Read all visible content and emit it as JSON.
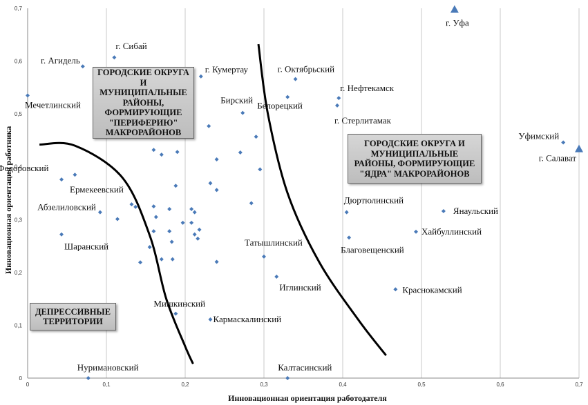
{
  "chart_data": {
    "type": "scatter",
    "xlabel": "Инновационная ориентация работодателя",
    "ylabel": "Инновационная ориентация работника",
    "xlim": [
      0,
      0.7
    ],
    "ylim": [
      0,
      0.7
    ],
    "xticks": [
      0,
      0.1,
      0.2,
      0.3,
      0.4,
      0.5,
      0.6,
      0.7
    ],
    "yticks": [
      0,
      0.1,
      0.2,
      0.3,
      0.4,
      0.5,
      0.6,
      0.7
    ],
    "xtick_labels": [
      "0",
      "0,1",
      "0,2",
      "0,3",
      "0,4",
      "0,5",
      "0,6",
      "0,7"
    ],
    "ytick_labels": [
      "0",
      "0,1",
      "0,2",
      "0,3",
      "0,4",
      "0,5",
      "0,6",
      "0,7"
    ],
    "grid": "vertical",
    "points": [
      {
        "x": 0.0,
        "y": 0.535,
        "label": "Мечетлинский",
        "marker": "diamond"
      },
      {
        "x": 0.07,
        "y": 0.59,
        "label": "г. Агидель",
        "marker": "diamond"
      },
      {
        "x": 0.11,
        "y": 0.607,
        "label": "г. Сибай",
        "marker": "diamond"
      },
      {
        "x": 0.22,
        "y": 0.571,
        "label": "г. Кумертау",
        "marker": "diamond"
      },
      {
        "x": 0.273,
        "y": 0.502,
        "label": "Бирский",
        "marker": "diamond"
      },
      {
        "x": 0.34,
        "y": 0.566,
        "label": "г. Октябрьский",
        "marker": "diamond"
      },
      {
        "x": 0.33,
        "y": 0.532,
        "label": "Белорецкий",
        "marker": "diamond"
      },
      {
        "x": 0.395,
        "y": 0.53,
        "label": "г. Нефтекамск",
        "marker": "diamond"
      },
      {
        "x": 0.393,
        "y": 0.516,
        "label": "г. Стерлитамак",
        "marker": "diamond"
      },
      {
        "x": 0.542,
        "y": 0.698,
        "label": "г. Уфа",
        "marker": "triangle"
      },
      {
        "x": 0.68,
        "y": 0.446,
        "label": "Уфимский",
        "marker": "diamond"
      },
      {
        "x": 0.7,
        "y": 0.434,
        "label": "г. Салават",
        "marker": "triangle"
      },
      {
        "x": 0.06,
        "y": 0.385,
        "label": "Федоровский",
        "marker": "diamond"
      },
      {
        "x": 0.043,
        "y": 0.376,
        "label": "Ермекеевский",
        "marker": "diamond"
      },
      {
        "x": 0.092,
        "y": 0.314,
        "label": "Абзелиловский",
        "marker": "diamond"
      },
      {
        "x": 0.043,
        "y": 0.272,
        "label": "Шаранский",
        "marker": "diamond"
      },
      {
        "x": 0.405,
        "y": 0.314,
        "label": "Дюртюлинский",
        "marker": "diamond"
      },
      {
        "x": 0.528,
        "y": 0.316,
        "label": "Янаульский",
        "marker": "diamond"
      },
      {
        "x": 0.493,
        "y": 0.277,
        "label": "Хайбуллинский",
        "marker": "diamond"
      },
      {
        "x": 0.408,
        "y": 0.266,
        "label": "Благовещенский",
        "marker": "diamond"
      },
      {
        "x": 0.3,
        "y": 0.23,
        "label": "Татышлинский",
        "marker": "diamond"
      },
      {
        "x": 0.316,
        "y": 0.192,
        "label": "Иглинский",
        "marker": "diamond"
      },
      {
        "x": 0.467,
        "y": 0.168,
        "label": "Краснокамский",
        "marker": "diamond"
      },
      {
        "x": 0.188,
        "y": 0.122,
        "label": "Мишкинский",
        "marker": "diamond"
      },
      {
        "x": 0.232,
        "y": 0.111,
        "label": "Кармаскалинский",
        "marker": "diamond"
      },
      {
        "x": 0.077,
        "y": 0.0,
        "label": "Нуримановский",
        "marker": "diamond"
      },
      {
        "x": 0.33,
        "y": 0.0,
        "label": "Калтасинский",
        "marker": "diamond"
      },
      {
        "x": 0.23,
        "y": 0.477,
        "label": "",
        "marker": "diamond"
      },
      {
        "x": 0.16,
        "y": 0.432,
        "label": "",
        "marker": "diamond"
      },
      {
        "x": 0.17,
        "y": 0.423,
        "label": "",
        "marker": "diamond"
      },
      {
        "x": 0.19,
        "y": 0.428,
        "label": "",
        "marker": "diamond"
      },
      {
        "x": 0.24,
        "y": 0.414,
        "label": "",
        "marker": "diamond"
      },
      {
        "x": 0.27,
        "y": 0.427,
        "label": "",
        "marker": "diamond"
      },
      {
        "x": 0.29,
        "y": 0.457,
        "label": "",
        "marker": "diamond"
      },
      {
        "x": 0.295,
        "y": 0.395,
        "label": "",
        "marker": "diamond"
      },
      {
        "x": 0.188,
        "y": 0.364,
        "label": "",
        "marker": "diamond"
      },
      {
        "x": 0.232,
        "y": 0.369,
        "label": "",
        "marker": "diamond"
      },
      {
        "x": 0.24,
        "y": 0.356,
        "label": "",
        "marker": "diamond"
      },
      {
        "x": 0.284,
        "y": 0.331,
        "label": "",
        "marker": "diamond"
      },
      {
        "x": 0.132,
        "y": 0.329,
        "label": "",
        "marker": "diamond"
      },
      {
        "x": 0.137,
        "y": 0.324,
        "label": "",
        "marker": "diamond"
      },
      {
        "x": 0.16,
        "y": 0.325,
        "label": "",
        "marker": "diamond"
      },
      {
        "x": 0.18,
        "y": 0.32,
        "label": "",
        "marker": "diamond"
      },
      {
        "x": 0.208,
        "y": 0.32,
        "label": "",
        "marker": "diamond"
      },
      {
        "x": 0.212,
        "y": 0.314,
        "label": "",
        "marker": "diamond"
      },
      {
        "x": 0.114,
        "y": 0.301,
        "label": "",
        "marker": "diamond"
      },
      {
        "x": 0.163,
        "y": 0.305,
        "label": "",
        "marker": "diamond"
      },
      {
        "x": 0.197,
        "y": 0.294,
        "label": "",
        "marker": "diamond"
      },
      {
        "x": 0.208,
        "y": 0.294,
        "label": "",
        "marker": "diamond"
      },
      {
        "x": 0.16,
        "y": 0.278,
        "label": "",
        "marker": "diamond"
      },
      {
        "x": 0.18,
        "y": 0.278,
        "label": "",
        "marker": "diamond"
      },
      {
        "x": 0.212,
        "y": 0.272,
        "label": "",
        "marker": "diamond"
      },
      {
        "x": 0.218,
        "y": 0.281,
        "label": "",
        "marker": "diamond"
      },
      {
        "x": 0.216,
        "y": 0.264,
        "label": "",
        "marker": "diamond"
      },
      {
        "x": 0.183,
        "y": 0.258,
        "label": "",
        "marker": "diamond"
      },
      {
        "x": 0.155,
        "y": 0.248,
        "label": "",
        "marker": "diamond"
      },
      {
        "x": 0.143,
        "y": 0.219,
        "label": "",
        "marker": "diamond"
      },
      {
        "x": 0.17,
        "y": 0.225,
        "label": "",
        "marker": "diamond"
      },
      {
        "x": 0.184,
        "y": 0.225,
        "label": "",
        "marker": "diamond"
      },
      {
        "x": 0.24,
        "y": 0.22,
        "label": "",
        "marker": "diamond"
      }
    ],
    "boundary_curves": [
      {
        "points": [
          [
            0.015,
            0.442
          ],
          [
            0.06,
            0.44
          ],
          [
            0.12,
            0.38
          ],
          [
            0.155,
            0.27
          ],
          [
            0.176,
            0.15
          ],
          [
            0.2,
            0.06
          ],
          [
            0.21,
            0.027
          ]
        ]
      },
      {
        "points": [
          [
            0.293,
            0.632
          ],
          [
            0.305,
            0.5
          ],
          [
            0.33,
            0.35
          ],
          [
            0.37,
            0.22
          ],
          [
            0.42,
            0.11
          ],
          [
            0.455,
            0.043
          ]
        ]
      }
    ],
    "annotations": [
      "ГОРОДСКИЕ ОКРУГА И МУНИЦИПАЛЬНЫЕ РАЙОНЫ, ФОРМИРУЮЩИЕ \"ПЕРИФЕРИЮ\" МАКРОРАЙОНОВ",
      "ГОРОДСКИЕ ОКРУГА И МУНИЦИПАЛЬНЫЕ РАЙОНЫ, ФОРМИРУЮЩИЕ \"ЯДРА\" МАКРОРАЙОНОВ",
      "ДЕПРЕССИВНЫЕ ТЕРРИТОРИИ"
    ],
    "colors": {
      "marker": "#4a7ab8",
      "curve": "#000000",
      "grid": "#c8c8c8"
    }
  }
}
